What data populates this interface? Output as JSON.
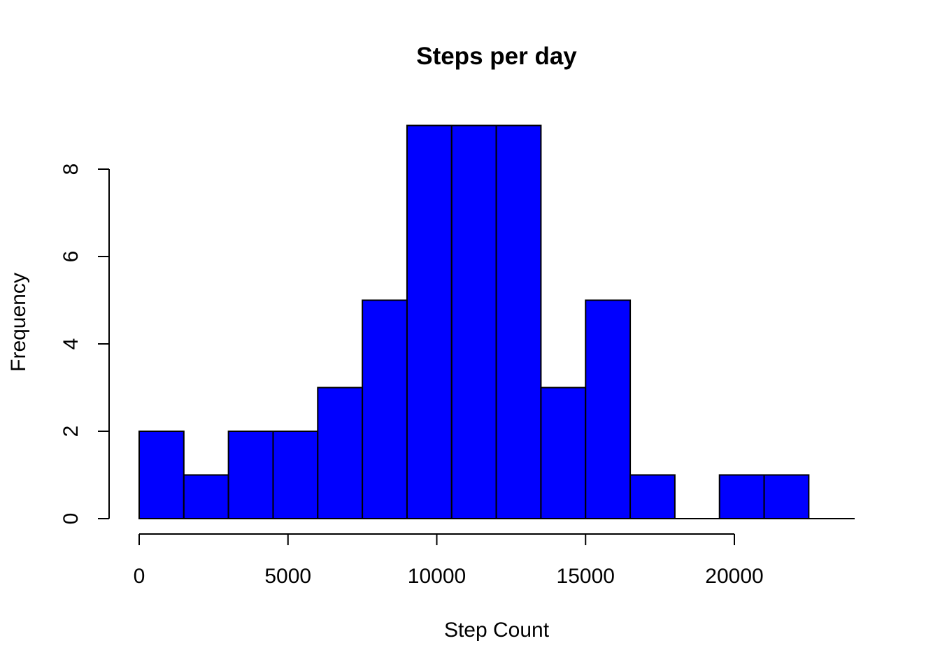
{
  "chart_data": {
    "type": "bar",
    "title": "Steps per day",
    "xlabel": "Step Count",
    "ylabel": "Frequency",
    "bin_edges": [
      0,
      1500,
      3000,
      4500,
      6000,
      7500,
      9000,
      10500,
      12000,
      13500,
      15000,
      16500,
      18000,
      19500,
      21000,
      22500
    ],
    "values": [
      2,
      1,
      2,
      2,
      3,
      5,
      9,
      9,
      9,
      3,
      5,
      1,
      0,
      1,
      1
    ],
    "xlim": [
      0,
      24000
    ],
    "ylim": [
      0,
      9
    ],
    "x_ticks": [
      0,
      5000,
      10000,
      15000,
      20000
    ],
    "x_tick_labels": [
      "0",
      "5000",
      "10000",
      "15000",
      "20000"
    ],
    "y_ticks": [
      0,
      2,
      4,
      6,
      8
    ],
    "y_tick_labels": [
      "0",
      "2",
      "4",
      "6",
      "8"
    ],
    "bar_color": "#0000ff",
    "grid": false,
    "legend": "none"
  }
}
